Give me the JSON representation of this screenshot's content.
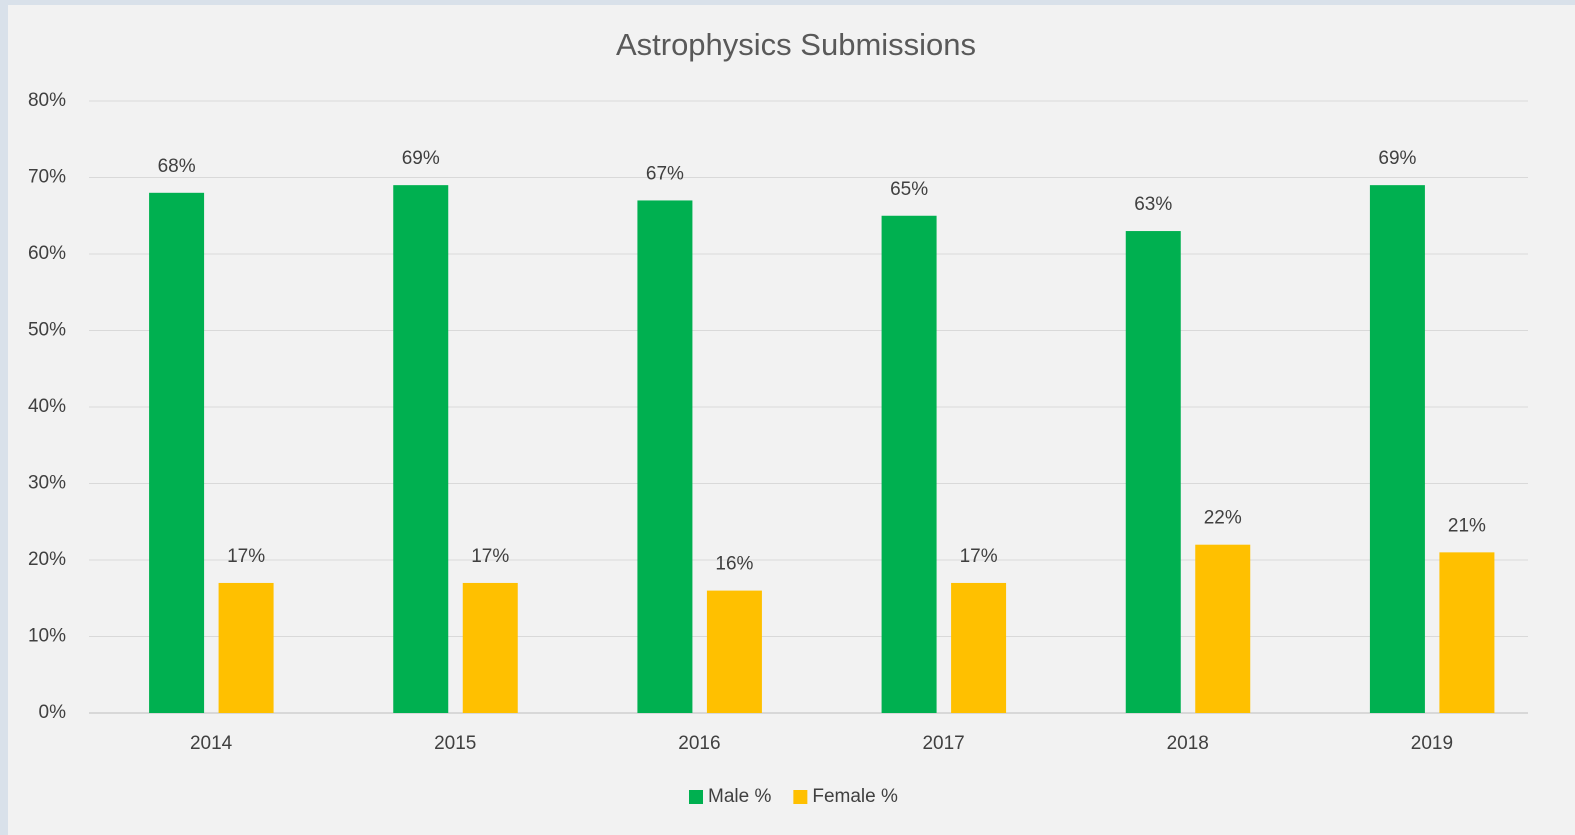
{
  "chart_data": {
    "type": "bar",
    "title": "Astrophysics Submissions",
    "categories": [
      "2014",
      "2015",
      "2016",
      "2017",
      "2018",
      "2019"
    ],
    "series": [
      {
        "name": "Male %",
        "color": "#00b050",
        "values": [
          68,
          69,
          67,
          65,
          63,
          69
        ],
        "value_labels": [
          "68%",
          "69%",
          "67%",
          "65%",
          "63%",
          "69%"
        ]
      },
      {
        "name": "Female %",
        "color": "#ffc000",
        "values": [
          17,
          17,
          16,
          17,
          22,
          21
        ],
        "value_labels": [
          "17%",
          "17%",
          "16%",
          "17%",
          "22%",
          "21%"
        ]
      }
    ],
    "ylim": [
      0,
      80
    ],
    "yticks": [
      {
        "value": 0,
        "label": "0%"
      },
      {
        "value": 10,
        "label": "10%"
      },
      {
        "value": 20,
        "label": "20%"
      },
      {
        "value": 30,
        "label": "30%"
      },
      {
        "value": 40,
        "label": "40%"
      },
      {
        "value": 50,
        "label": "50%"
      },
      {
        "value": 60,
        "label": "60%"
      },
      {
        "value": 70,
        "label": "70%"
      },
      {
        "value": 80,
        "label": "80%"
      }
    ],
    "grid": true,
    "legend": "bottom"
  }
}
